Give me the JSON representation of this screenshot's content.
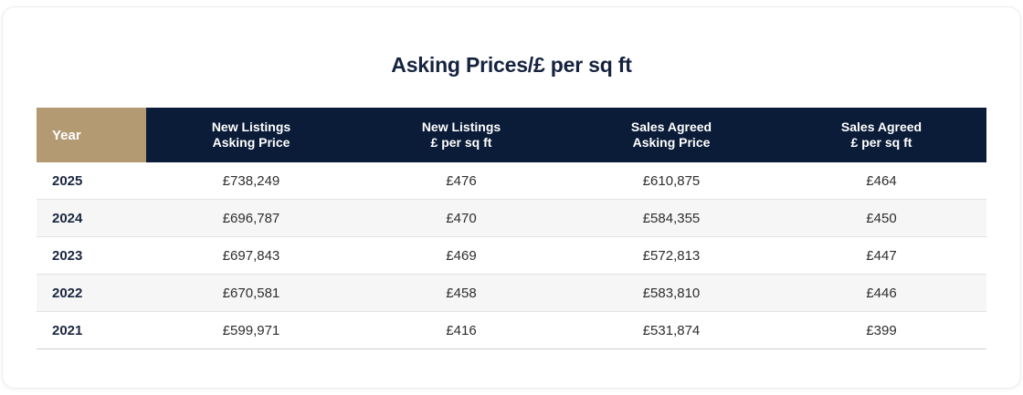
{
  "header": {
    "title": "Asking Prices/£ per sq ft"
  },
  "colors": {
    "navy": "#0b1c38",
    "tan": "#b39a72",
    "title_text": "#15233f",
    "alt_row": "#f6f6f6"
  },
  "table": {
    "year_label": "Year",
    "columns": [
      {
        "line1": "New Listings",
        "line2": "Asking Price"
      },
      {
        "line1": "New Listings",
        "line2": "£ per sq ft"
      },
      {
        "line1": "Sales Agreed",
        "line2": "Asking Price"
      },
      {
        "line1": "Sales Agreed",
        "line2": "£ per sq ft"
      }
    ],
    "rows": [
      {
        "year": "2025",
        "values": [
          "£738,249",
          "£476",
          "£610,875",
          "£464"
        ]
      },
      {
        "year": "2024",
        "values": [
          "£696,787",
          "£470",
          "£584,355",
          "£450"
        ]
      },
      {
        "year": "2023",
        "values": [
          "£697,843",
          "£469",
          "£572,813",
          "£447"
        ]
      },
      {
        "year": "2022",
        "values": [
          "£670,581",
          "£458",
          "£583,810",
          "£446"
        ]
      },
      {
        "year": "2021",
        "values": [
          "£599,971",
          "£416",
          "£531,874",
          "£399"
        ]
      }
    ]
  },
  "chart_data": {
    "type": "table",
    "title": "Asking Prices/£ per sq ft",
    "columns": [
      "Year",
      "New Listings Asking Price",
      "New Listings £ per sq ft",
      "Sales Agreed Asking Price",
      "Sales Agreed £ per sq ft"
    ],
    "rows": [
      [
        "2025",
        738249,
        476,
        610875,
        464
      ],
      [
        "2024",
        696787,
        470,
        584355,
        450
      ],
      [
        "2023",
        697843,
        469,
        572813,
        447
      ],
      [
        "2022",
        670581,
        458,
        583810,
        446
      ],
      [
        "2021",
        599971,
        416,
        531874,
        399
      ]
    ],
    "units": "GBP (£)"
  }
}
